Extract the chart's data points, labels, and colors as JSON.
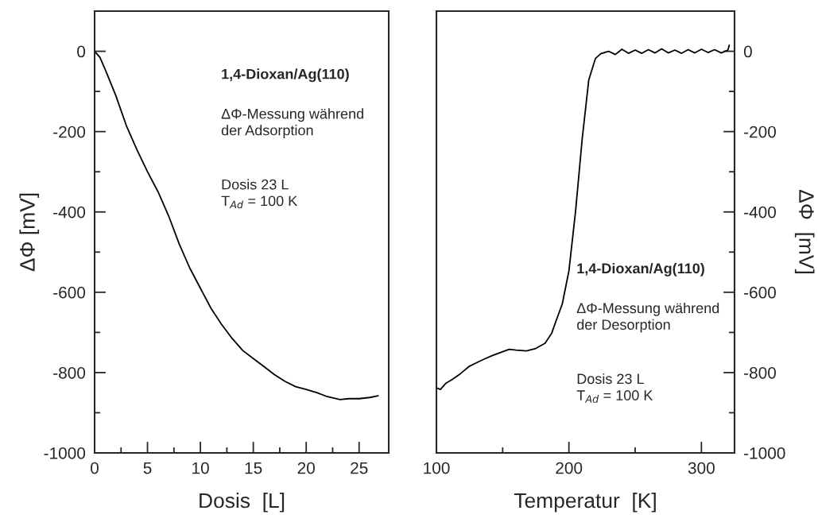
{
  "chart_data": [
    {
      "type": "line",
      "xlabel": "Dosis  [L]",
      "ylabel": "ΔΦ [mV]",
      "color": "#000000",
      "x": [
        0,
        0.5,
        1,
        2,
        3,
        4,
        5,
        6,
        6.5,
        7,
        8,
        9,
        10,
        11,
        12,
        13,
        14,
        15,
        16,
        17,
        18,
        19,
        20,
        21,
        22,
        23.2,
        24,
        25,
        26,
        26.8
      ],
      "values": [
        0,
        -15,
        -45,
        -110,
        -185,
        -245,
        -300,
        -350,
        -380,
        -410,
        -480,
        -540,
        -590,
        -640,
        -680,
        -715,
        -745,
        -765,
        -785,
        -805,
        -822,
        -835,
        -842,
        -850,
        -860,
        -867,
        -865,
        -865,
        -862,
        -858
      ],
      "xlim": [
        0,
        27.8
      ],
      "ylim": [
        -1000,
        100
      ],
      "xticks": [
        0,
        5,
        10,
        15,
        20,
        25
      ],
      "yticks": [
        -1000,
        -800,
        -600,
        -400,
        -200,
        0
      ],
      "annotations": [
        "1,4-Dioxan/Ag(110)",
        "ΔΦ-Messung während\nder Adsorption",
        "Dosis 23 L\nT$_{Ad}$ = 100 K"
      ]
    },
    {
      "type": "line",
      "xlabel": "Temperatur  [K]",
      "y2label": "ΔΦ  [mV]",
      "series": [
        {
          "color": "#000000",
          "axis": "y2",
          "x": [
            100,
            103,
            107,
            112,
            118,
            125,
            130,
            135,
            142,
            150,
            155,
            160,
            168,
            175,
            182,
            187,
            190,
            195,
            200,
            205,
            210,
            215,
            220,
            224,
            230,
            235,
            240,
            245,
            250,
            255,
            260,
            265,
            270,
            275,
            280,
            285,
            290,
            295,
            300,
            305,
            310,
            315,
            320,
            321
          ],
          "values": [
            -838,
            -842,
            -827,
            -817,
            -803,
            -784,
            -776,
            -768,
            -758,
            -748,
            -742,
            -744,
            -746,
            -740,
            -727,
            -702,
            -674,
            -629,
            -547,
            -399,
            -219,
            -71,
            -18,
            -6,
            0,
            -8,
            5,
            -5,
            3,
            -5,
            4,
            -4,
            6,
            -4,
            3,
            -5,
            4,
            -4,
            5,
            -3,
            4,
            -4,
            3,
            15
          ]
        }
      ],
      "xlim": [
        100,
        325
      ],
      "y2lim": [
        -1000,
        100
      ],
      "xticks": [
        100,
        200,
        300
      ],
      "y2ticks": [
        -1000,
        -800,
        -600,
        -400,
        -200,
        0
      ],
      "annotations": [
        "1,4-Dioxan/Ag(110)",
        "ΔΦ-Messung während\nder Desorption",
        "Dosis 23 L\nT$_{Ad}$ = 100 K"
      ]
    }
  ]
}
